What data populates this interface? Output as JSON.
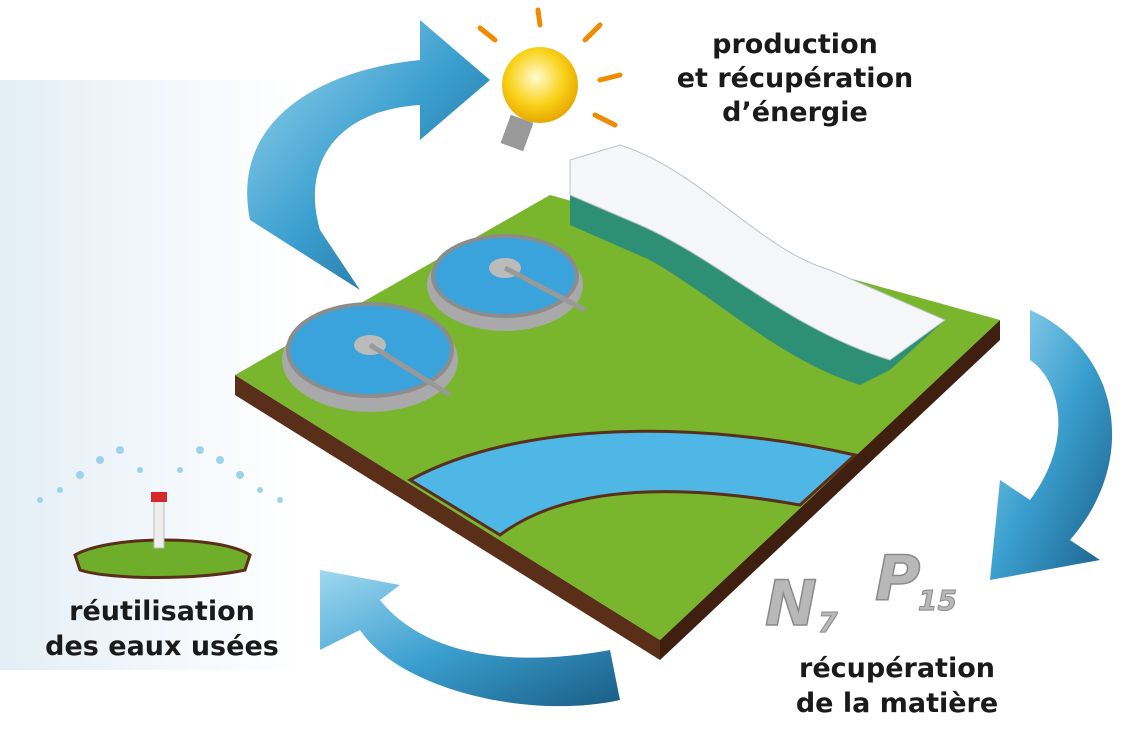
{
  "labels": {
    "energy": [
      "production",
      "et récupération",
      "d’énergie"
    ],
    "reuse": [
      "réutilisation",
      "des eaux usées"
    ],
    "matter": [
      "récupération",
      "de la matière"
    ]
  },
  "elements": [
    {
      "symbol": "N",
      "number": 7
    },
    {
      "symbol": "P",
      "number": 15
    }
  ]
}
